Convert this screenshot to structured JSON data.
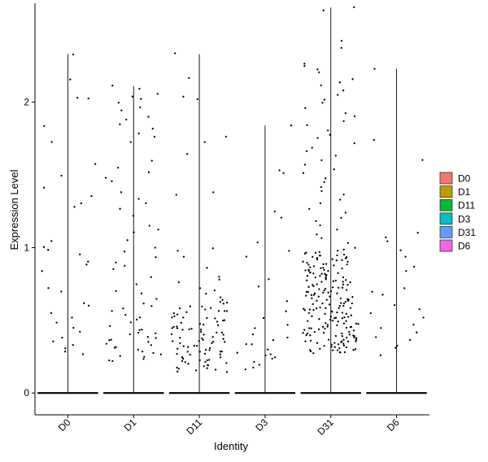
{
  "chart_data": {
    "type": "scatter",
    "subtype": "violin-jitter",
    "xlabel": "Identity",
    "ylabel": "Expression Level",
    "categories": [
      "D0",
      "D1",
      "D11",
      "D3",
      "D31",
      "D6"
    ],
    "ylim": [
      -0.15,
      2.68
    ],
    "y_ticks": [
      0,
      1,
      2
    ],
    "grid": false,
    "legend_position": "right",
    "legend": [
      {
        "label": "D0",
        "color": "#F8766D"
      },
      {
        "label": "D1",
        "color": "#B79F00"
      },
      {
        "label": "D11",
        "color": "#00BA38"
      },
      {
        "label": "D3",
        "color": "#00BFC4"
      },
      {
        "label": "D31",
        "color": "#619CFF"
      },
      {
        "label": "D6",
        "color": "#F564E3"
      }
    ],
    "series": [
      {
        "category": "D0",
        "max": 2.33,
        "points": [
          2.33,
          2.15,
          2.03,
          2.02,
          1.83,
          1.73,
          1.58,
          1.5,
          1.41,
          1.35,
          1.31,
          1.28,
          1.04,
          1.0,
          0.99,
          0.95,
          0.9,
          0.88,
          0.84,
          0.72,
          0.7,
          0.62,
          0.6,
          0.55,
          0.52,
          0.48,
          0.45,
          0.42,
          0.38,
          0.36,
          0.33,
          0.31,
          0.29,
          0.27
        ]
      },
      {
        "category": "D1",
        "max": 2.11,
        "points": [
          2.11,
          2.09,
          2.06,
          2.04,
          2.02,
          2.0,
          1.97,
          1.94,
          1.9,
          1.88,
          1.85,
          1.82,
          1.79,
          1.76,
          1.73,
          1.6,
          1.55,
          1.52,
          1.48,
          1.45,
          1.38,
          1.33,
          1.3,
          1.27,
          1.22,
          1.15,
          1.12,
          1.1,
          1.05,
          1.0,
          0.97,
          0.93,
          0.9,
          0.88,
          0.85,
          0.8,
          0.75,
          0.7,
          0.68,
          0.65,
          0.62,
          0.6,
          0.58,
          0.56,
          0.54,
          0.52,
          0.5,
          0.48,
          0.46,
          0.44,
          0.43,
          0.42,
          0.41,
          0.4,
          0.39,
          0.38,
          0.37,
          0.36,
          0.35,
          0.34,
          0.33,
          0.32,
          0.31,
          0.3,
          0.29,
          0.28,
          0.27,
          0.26,
          0.25,
          0.24,
          0.23,
          0.22
        ]
      },
      {
        "category": "D11",
        "max": 2.33,
        "points": [
          2.33,
          2.17,
          2.04,
          2.02,
          1.76,
          1.73,
          1.64,
          1.38,
          1.36,
          1.0,
          0.98,
          0.94,
          0.86,
          0.8,
          0.78,
          0.76,
          0.72,
          0.7,
          0.68,
          0.66,
          0.64,
          0.62,
          0.61,
          0.6,
          0.59,
          0.58,
          0.57,
          0.56,
          0.55,
          0.54,
          0.53,
          0.52,
          0.51,
          0.5,
          0.49,
          0.48,
          0.47,
          0.46,
          0.45,
          0.44,
          0.43,
          0.42,
          0.41,
          0.4,
          0.39,
          0.38,
          0.37,
          0.36,
          0.35,
          0.34,
          0.33,
          0.32,
          0.31,
          0.3,
          0.29,
          0.28,
          0.27,
          0.26,
          0.25,
          0.24,
          0.23,
          0.22,
          0.21,
          0.2,
          0.19,
          0.18,
          0.17,
          0.16,
          0.15,
          0.14,
          0.62,
          0.58,
          0.55,
          0.52,
          0.5,
          0.48,
          0.46,
          0.44,
          0.42,
          0.4,
          0.38,
          0.36,
          0.34,
          0.32,
          0.3,
          0.28,
          0.26,
          0.24,
          0.22,
          0.2,
          0.18,
          0.16,
          0.35,
          0.3,
          0.27,
          0.25,
          0.23,
          0.21,
          0.19,
          0.17,
          0.45,
          0.41,
          0.37,
          0.33,
          0.29,
          0.6,
          0.56,
          0.52,
          0.47,
          0.43
        ]
      },
      {
        "category": "D3",
        "max": 1.84,
        "points": [
          1.84,
          1.53,
          1.51,
          1.25,
          1.21,
          1.03,
          0.98,
          0.94,
          0.78,
          0.73,
          0.63,
          0.56,
          0.52,
          0.47,
          0.45,
          0.4,
          0.38,
          0.36,
          0.33,
          0.3,
          0.28,
          0.26,
          0.24,
          0.22,
          0.2,
          0.18,
          0.16,
          0.34,
          0.27,
          0.23
        ]
      },
      {
        "category": "D31",
        "max": 2.65,
        "points": [
          2.65,
          2.63,
          2.42,
          2.37,
          2.27,
          2.25,
          2.22,
          2.2,
          2.16,
          2.14,
          2.11,
          2.08,
          2.05,
          2.02,
          1.99,
          1.96,
          1.93,
          1.9,
          1.87,
          1.84,
          1.81,
          1.78,
          1.75,
          1.72,
          1.69,
          1.66,
          1.63,
          1.6,
          1.57,
          1.54,
          1.51,
          1.48,
          1.45,
          1.42,
          1.39,
          1.36,
          1.33,
          1.3,
          1.27,
          1.24,
          1.21,
          1.18,
          1.15,
          1.12,
          1.09,
          1.06,
          1.03,
          1.0,
          0.98,
          0.97,
          0.96,
          0.95,
          0.94,
          0.93,
          0.92,
          0.91,
          0.9,
          0.89,
          0.88,
          0.87,
          0.86,
          0.85,
          0.84,
          0.83,
          0.82,
          0.81,
          0.8,
          0.79,
          0.78,
          0.77,
          0.76,
          0.75,
          0.74,
          0.73,
          0.72,
          0.71,
          0.7,
          0.69,
          0.68,
          0.67,
          0.66,
          0.65,
          0.64,
          0.63,
          0.62,
          0.61,
          0.6,
          0.59,
          0.58,
          0.57,
          0.56,
          0.55,
          0.54,
          0.53,
          0.52,
          0.51,
          0.5,
          0.49,
          0.48,
          0.47,
          0.46,
          0.45,
          0.44,
          0.43,
          0.42,
          0.41,
          0.4,
          0.39,
          0.38,
          0.37,
          0.36,
          0.35,
          0.34,
          0.33,
          0.32,
          0.31,
          0.3,
          0.29,
          0.28,
          0.27,
          0.95,
          0.9,
          0.85,
          0.8,
          0.75,
          0.7,
          0.65,
          0.6,
          0.55,
          0.5,
          0.45,
          0.4,
          0.35,
          0.3,
          0.93,
          0.88,
          0.83,
          0.78,
          0.73,
          0.68,
          0.63,
          0.58,
          0.53,
          0.48,
          0.43,
          0.38,
          0.33,
          0.91,
          0.86,
          0.81,
          0.76,
          0.71,
          0.66,
          0.61,
          0.56,
          0.51,
          0.46,
          0.41,
          0.36,
          0.31,
          0.89,
          0.84,
          0.79,
          0.74,
          0.69,
          0.64,
          0.59,
          0.54,
          0.49,
          0.44,
          0.39,
          0.34,
          0.29,
          0.87,
          0.82,
          0.77,
          0.72,
          0.67,
          0.62,
          0.57,
          0.52,
          0.47,
          0.42,
          0.37,
          0.32,
          0.28,
          0.96,
          0.92,
          0.81,
          0.74,
          0.66,
          0.58,
          0.51,
          0.47,
          0.42,
          0.38,
          0.34,
          0.99,
          0.97,
          0.94,
          0.89,
          0.84,
          0.79,
          0.71,
          0.64,
          0.57,
          0.49,
          0.41,
          0.36,
          0.31,
          0.88,
          0.83,
          0.76,
          0.69,
          0.62,
          0.55,
          0.48,
          0.44,
          0.39,
          0.35,
          0.3,
          0.94,
          0.86,
          0.78,
          0.7,
          0.62,
          0.54,
          0.46,
          0.4,
          0.36,
          0.32,
          0.28,
          0.92,
          0.82,
          0.72,
          0.65,
          0.58,
          0.52,
          0.45,
          0.39,
          0.33,
          0.29
        ]
      },
      {
        "category": "D6",
        "max": 2.23,
        "points": [
          2.23,
          1.74,
          1.6,
          1.1,
          1.07,
          1.04,
          0.98,
          0.94,
          0.87,
          0.84,
          0.72,
          0.69,
          0.67,
          0.61,
          0.58,
          0.55,
          0.52,
          0.47,
          0.45,
          0.42,
          0.39,
          0.36,
          0.33,
          0.31,
          0.26
        ]
      }
    ]
  }
}
